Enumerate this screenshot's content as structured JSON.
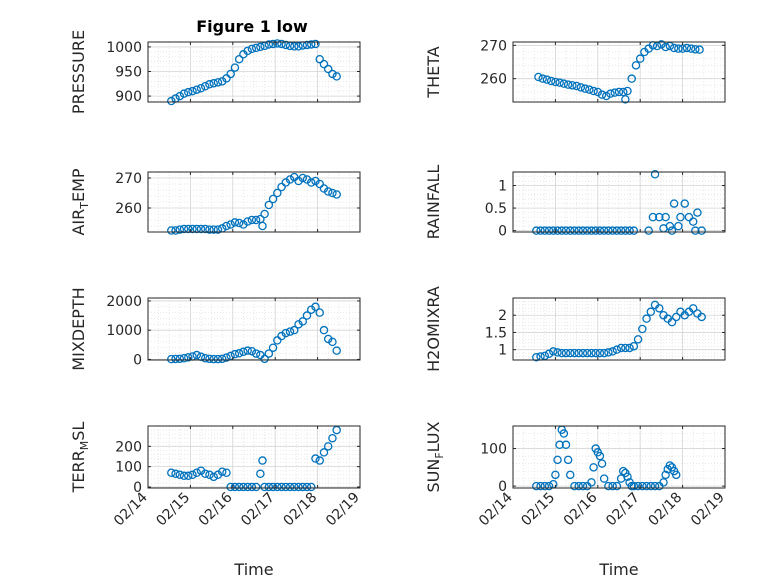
{
  "figure": {
    "title": "Figure 1 low"
  },
  "chart_data": [
    {
      "type": "scatter",
      "ylabel": "PRESSURE",
      "ylim": [
        888,
        1010
      ],
      "yticks": [
        900,
        950,
        1000
      ],
      "ytick_labels": [
        "900",
        "950",
        "1000"
      ],
      "xlim": [
        0,
        5
      ],
      "x_tick_labels": [],
      "grid": true,
      "color": "#0072BD",
      "x": [
        0.55,
        0.65,
        0.75,
        0.85,
        0.95,
        1.05,
        1.15,
        1.25,
        1.35,
        1.45,
        1.55,
        1.65,
        1.75,
        1.85,
        1.95,
        2.05,
        2.15,
        2.25,
        2.35,
        2.45,
        2.55,
        2.65,
        2.75,
        2.85,
        2.95,
        3.05,
        3.15,
        3.25,
        3.35,
        3.45,
        3.55,
        3.65,
        3.75,
        3.85,
        3.95,
        4.05,
        4.15,
        4.25,
        4.35,
        4.45
      ],
      "y": [
        890,
        895,
        900,
        905,
        908,
        910,
        913,
        916,
        920,
        924,
        926,
        928,
        930,
        936,
        945,
        958,
        975,
        985,
        992,
        996,
        998,
        1000,
        1002,
        1005,
        1006,
        1007,
        1006,
        1004,
        1002,
        1001,
        1001,
        1003,
        1004,
        1005,
        1006,
        975,
        965,
        955,
        945,
        940
      ]
    },
    {
      "type": "scatter",
      "ylabel": "THETA",
      "ylim": [
        253,
        271
      ],
      "yticks": [
        260,
        270
      ],
      "ytick_labels": [
        "260",
        "270"
      ],
      "xlim": [
        0,
        5
      ],
      "x_tick_labels": [],
      "grid": true,
      "color": "#0072BD",
      "x": [
        0.6,
        0.7,
        0.8,
        0.9,
        1.0,
        1.1,
        1.2,
        1.3,
        1.4,
        1.5,
        1.6,
        1.7,
        1.8,
        1.9,
        2.0,
        2.1,
        2.2,
        2.3,
        2.4,
        2.5,
        2.6,
        2.65,
        2.7,
        2.8,
        2.9,
        3.0,
        3.1,
        3.2,
        3.3,
        3.4,
        3.5,
        3.6,
        3.7,
        3.8,
        3.9,
        4.0,
        4.1,
        4.2,
        4.3,
        4.4
      ],
      "y": [
        260.5,
        260,
        259.7,
        259.3,
        259,
        258.8,
        258.5,
        258.2,
        258,
        257.8,
        257.4,
        257,
        256.7,
        256.3,
        256,
        255.2,
        254.8,
        255.5,
        255.8,
        256,
        256,
        253.8,
        256.3,
        260,
        264,
        266,
        268,
        269,
        270,
        269.8,
        270.3,
        269.5,
        269.8,
        269.2,
        269,
        269,
        269.2,
        269,
        268.8,
        268.7
      ]
    },
    {
      "type": "scatter",
      "ylabel": "AIR_TEMP",
      "ylim": [
        252,
        272
      ],
      "yticks": [
        260,
        270
      ],
      "ytick_labels": [
        "260",
        "270"
      ],
      "xlim": [
        0,
        5
      ],
      "x_tick_labels": [],
      "grid": true,
      "color": "#0072BD",
      "x": [
        0.55,
        0.65,
        0.75,
        0.85,
        0.95,
        1.05,
        1.15,
        1.25,
        1.35,
        1.45,
        1.55,
        1.65,
        1.75,
        1.85,
        1.95,
        2.05,
        2.15,
        2.25,
        2.35,
        2.45,
        2.55,
        2.65,
        2.7,
        2.75,
        2.85,
        2.95,
        3.05,
        3.15,
        3.25,
        3.35,
        3.45,
        3.55,
        3.65,
        3.75,
        3.85,
        3.95,
        4.05,
        4.15,
        4.25,
        4.35,
        4.45
      ],
      "y": [
        252.5,
        252.5,
        252.8,
        253,
        253,
        253,
        253,
        253,
        253,
        252.8,
        252.8,
        252.8,
        253.2,
        254,
        254.5,
        255.2,
        255,
        254.5,
        255.5,
        256,
        256,
        256.3,
        254,
        258,
        261,
        263,
        265,
        267,
        268.5,
        269.5,
        270.3,
        269,
        270,
        269.5,
        268.5,
        269,
        268,
        266.5,
        265.5,
        265,
        264.5
      ]
    },
    {
      "type": "scatter",
      "ylabel": "RAINFALL",
      "ylim": [
        -0.03,
        1.3
      ],
      "yticks": [
        0,
        0.5,
        1
      ],
      "ytick_labels": [
        "0",
        "0.5",
        "1"
      ],
      "xlim": [
        0,
        5
      ],
      "x_tick_labels": [],
      "grid": true,
      "color": "#0072BD",
      "x": [
        0.55,
        0.65,
        0.75,
        0.85,
        0.95,
        1.05,
        1.15,
        1.25,
        1.35,
        1.45,
        1.55,
        1.65,
        1.75,
        1.85,
        1.95,
        2.05,
        2.15,
        2.25,
        2.35,
        2.45,
        2.55,
        2.65,
        2.75,
        2.85,
        3.2,
        3.3,
        3.35,
        3.45,
        3.55,
        3.6,
        3.7,
        3.75,
        3.8,
        3.9,
        3.95,
        4.05,
        4.15,
        4.25,
        4.3,
        4.35,
        4.45
      ],
      "y": [
        0,
        0,
        0,
        0,
        0,
        0,
        0,
        0,
        0,
        0,
        0,
        0,
        0,
        0,
        0,
        0,
        0,
        0,
        0,
        0,
        0,
        0,
        0,
        0,
        0,
        0.3,
        1.25,
        0.3,
        0.05,
        0.3,
        0.1,
        0,
        0.6,
        0.1,
        0.3,
        0.6,
        0.3,
        0.2,
        0,
        0.4,
        0
      ]
    },
    {
      "type": "scatter",
      "ylabel": "MIXDEPTH",
      "ylim": [
        -20,
        2100
      ],
      "yticks": [
        0,
        1000,
        2000
      ],
      "ytick_labels": [
        "0",
        "1000",
        "2000"
      ],
      "xlim": [
        0,
        5
      ],
      "x_tick_labels": [],
      "grid": true,
      "color": "#0072BD",
      "x": [
        0.55,
        0.65,
        0.75,
        0.85,
        0.95,
        1.05,
        1.15,
        1.25,
        1.35,
        1.45,
        1.55,
        1.65,
        1.75,
        1.85,
        1.95,
        2.05,
        2.15,
        2.25,
        2.35,
        2.45,
        2.55,
        2.65,
        2.75,
        2.85,
        2.95,
        3.05,
        3.15,
        3.25,
        3.35,
        3.45,
        3.55,
        3.65,
        3.75,
        3.85,
        3.95,
        4.05,
        4.15,
        4.25,
        4.35,
        4.45
      ],
      "y": [
        10,
        15,
        20,
        40,
        70,
        100,
        150,
        90,
        40,
        20,
        10,
        10,
        20,
        60,
        120,
        180,
        210,
        260,
        300,
        280,
        200,
        150,
        20,
        200,
        400,
        650,
        800,
        900,
        950,
        1000,
        1200,
        1300,
        1500,
        1700,
        1800,
        1600,
        1000,
        700,
        600,
        300
      ]
    },
    {
      "type": "scatter",
      "ylabel": "H2OMIXRA",
      "ylim": [
        0.7,
        2.5
      ],
      "yticks": [
        1,
        1.5,
        2
      ],
      "ytick_labels": [
        "1",
        "1.5",
        "2"
      ],
      "xlim": [
        0,
        5
      ],
      "x_tick_labels": [],
      "grid": true,
      "color": "#0072BD",
      "x": [
        0.55,
        0.65,
        0.75,
        0.85,
        0.95,
        1.05,
        1.15,
        1.25,
        1.35,
        1.45,
        1.55,
        1.65,
        1.75,
        1.85,
        1.95,
        2.05,
        2.15,
        2.25,
        2.35,
        2.45,
        2.55,
        2.65,
        2.75,
        2.85,
        2.95,
        3.05,
        3.15,
        3.25,
        3.35,
        3.45,
        3.55,
        3.65,
        3.75,
        3.85,
        3.95,
        4.05,
        4.15,
        4.25,
        4.35,
        4.45
      ],
      "y": [
        0.78,
        0.8,
        0.82,
        0.88,
        0.95,
        0.92,
        0.9,
        0.9,
        0.9,
        0.9,
        0.9,
        0.9,
        0.9,
        0.9,
        0.9,
        0.9,
        0.9,
        0.92,
        0.95,
        1,
        1.05,
        1.05,
        1.05,
        1.1,
        1.3,
        1.6,
        1.9,
        2.1,
        2.3,
        2.2,
        2,
        1.9,
        1.8,
        1.95,
        2.1,
        2,
        2.1,
        2.2,
        2.05,
        1.95
      ]
    },
    {
      "type": "scatter",
      "ylabel": "TERR_MSL",
      "ylim": [
        -5,
        300
      ],
      "yticks": [
        0,
        100,
        200
      ],
      "ytick_labels": [
        "0",
        "100",
        "200"
      ],
      "xlim": [
        0,
        5
      ],
      "x_tick_labels": [
        "02/14",
        "02/15",
        "02/16",
        "02/17",
        "02/18",
        "02/19"
      ],
      "xlabel": "Time",
      "grid": true,
      "color": "#0072BD",
      "x": [
        0.55,
        0.65,
        0.75,
        0.85,
        0.95,
        1.05,
        1.15,
        1.25,
        1.35,
        1.45,
        1.55,
        1.65,
        1.75,
        1.85,
        1.95,
        2.05,
        2.15,
        2.25,
        2.35,
        2.45,
        2.55,
        2.65,
        2.7,
        2.75,
        2.85,
        2.95,
        3.05,
        3.15,
        3.25,
        3.35,
        3.45,
        3.55,
        3.65,
        3.75,
        3.85,
        3.95,
        4.05,
        4.15,
        4.25,
        4.35,
        4.45
      ],
      "y": [
        70,
        65,
        60,
        55,
        55,
        60,
        70,
        80,
        65,
        60,
        50,
        60,
        75,
        70,
        0,
        0,
        0,
        0,
        0,
        0,
        0,
        65,
        130,
        0,
        0,
        0,
        0,
        0,
        0,
        0,
        0,
        0,
        0,
        0,
        0,
        140,
        130,
        170,
        200,
        240,
        280
      ]
    },
    {
      "type": "scatter",
      "ylabel": "SUN_FLUX",
      "ylim": [
        -5,
        160
      ],
      "yticks": [
        0,
        100
      ],
      "ytick_labels": [
        "0",
        "100"
      ],
      "xlim": [
        0,
        5
      ],
      "x_tick_labels": [
        "02/14",
        "02/15",
        "02/16",
        "02/17",
        "02/18",
        "02/19"
      ],
      "xlabel": "Time",
      "grid": true,
      "color": "#0072BD",
      "x": [
        0.55,
        0.65,
        0.75,
        0.85,
        0.95,
        1.0,
        1.05,
        1.1,
        1.15,
        1.2,
        1.25,
        1.3,
        1.35,
        1.45,
        1.55,
        1.65,
        1.75,
        1.85,
        1.9,
        1.95,
        2.0,
        2.05,
        2.1,
        2.15,
        2.25,
        2.35,
        2.45,
        2.55,
        2.6,
        2.65,
        2.7,
        2.75,
        2.8,
        2.85,
        2.95,
        3.05,
        3.15,
        3.25,
        3.35,
        3.45,
        3.55,
        3.6,
        3.65,
        3.7,
        3.75,
        3.8,
        3.85
      ],
      "y": [
        0,
        0,
        0,
        0,
        5,
        30,
        70,
        110,
        150,
        140,
        110,
        70,
        30,
        0,
        0,
        0,
        0,
        10,
        50,
        100,
        90,
        80,
        60,
        20,
        0,
        0,
        0,
        20,
        40,
        35,
        25,
        10,
        0,
        0,
        0,
        0,
        0,
        0,
        0,
        0,
        10,
        30,
        45,
        55,
        50,
        40,
        30
      ]
    }
  ]
}
